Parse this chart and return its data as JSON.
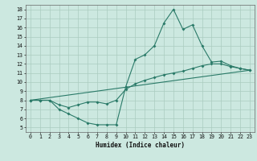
{
  "xlabel": "Humidex (Indice chaleur)",
  "xlim": [
    -0.5,
    23.5
  ],
  "ylim": [
    4.5,
    18.5
  ],
  "yticks": [
    5,
    6,
    7,
    8,
    9,
    10,
    11,
    12,
    13,
    14,
    15,
    16,
    17,
    18
  ],
  "xticks": [
    0,
    1,
    2,
    3,
    4,
    5,
    6,
    7,
    8,
    9,
    10,
    11,
    12,
    13,
    14,
    15,
    16,
    17,
    18,
    19,
    20,
    21,
    22,
    23
  ],
  "bg_color": "#cce8e0",
  "line_color": "#2a7a68",
  "grid_color": "#aaccbf",
  "line1_x": [
    0,
    1,
    2,
    3,
    4,
    5,
    6,
    7,
    8,
    9,
    10,
    11,
    12,
    13,
    14,
    15,
    16,
    17,
    18,
    19,
    20,
    21,
    22,
    23
  ],
  "line1_y": [
    8.0,
    8.0,
    8.0,
    7.0,
    6.5,
    6.0,
    5.5,
    5.3,
    5.3,
    5.3,
    9.5,
    12.5,
    13.0,
    14.0,
    16.5,
    18.0,
    15.8,
    16.3,
    14.0,
    12.2,
    12.3,
    11.8,
    11.5,
    11.3
  ],
  "line2_x": [
    0,
    1,
    2,
    3,
    4,
    5,
    6,
    7,
    8,
    9,
    10,
    11,
    12,
    13,
    14,
    15,
    16,
    17,
    18,
    19,
    20,
    21,
    22,
    23
  ],
  "line2_y": [
    8.0,
    8.0,
    8.0,
    7.5,
    7.2,
    7.5,
    7.8,
    7.8,
    7.6,
    8.0,
    9.2,
    9.8,
    10.2,
    10.5,
    10.8,
    11.0,
    11.2,
    11.5,
    11.8,
    12.0,
    12.0,
    11.7,
    11.5,
    11.3
  ],
  "line3_x": [
    0,
    23
  ],
  "line3_y": [
    8.0,
    11.3
  ]
}
